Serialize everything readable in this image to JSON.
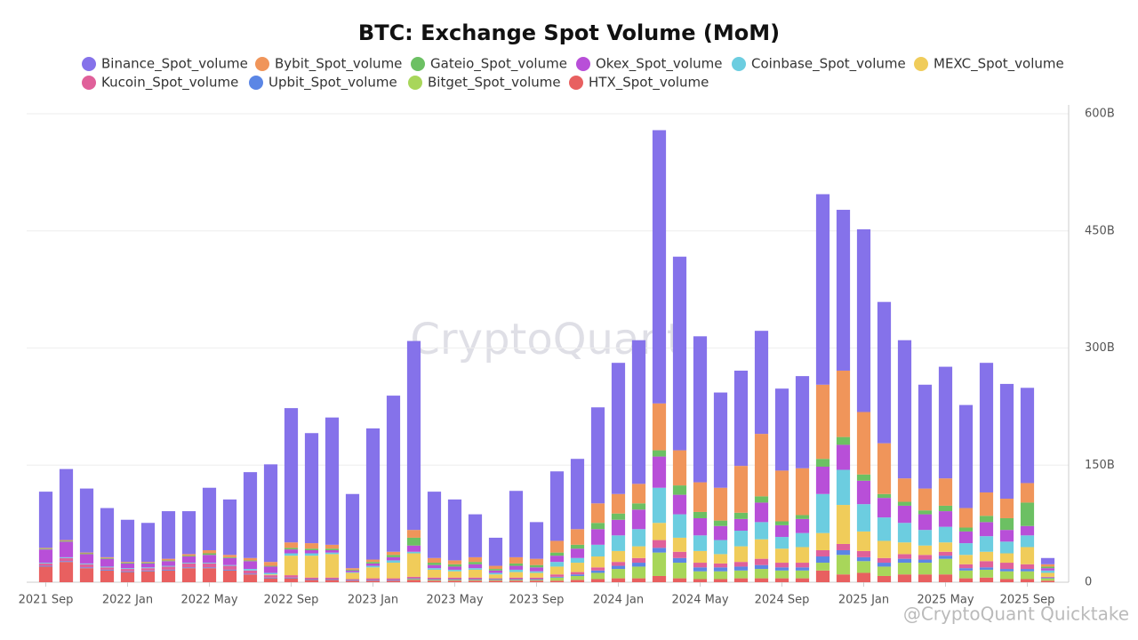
{
  "chart_data": {
    "type": "stacked_bar",
    "title": "BTC: Exchange Spot Volume (MoM)",
    "watermark": "CryptoQuant",
    "credit": "@CryptoQuant Quicktake",
    "categories": [
      "2021 Sep",
      null,
      null,
      null,
      "2022 Jan",
      null,
      null,
      null,
      "2022 May",
      null,
      null,
      null,
      "2022 Sep",
      null,
      null,
      null,
      "2023 Jan",
      null,
      null,
      null,
      "2023 May",
      null,
      null,
      null,
      "2023 Sep",
      null,
      null,
      null,
      "2024 Jan",
      null,
      null,
      null,
      "2024 May",
      null,
      null,
      null,
      "2024 Sep",
      null,
      null,
      null,
      "2025 Jan",
      null,
      null,
      null,
      "2025 May",
      null,
      null,
      null,
      "2025 Sep",
      null
    ],
    "series": [
      {
        "name": "Binance_Spot_volume",
        "color": "#8572ea",
        "values": [
          72,
          91,
          82,
          63,
          54,
          50,
          61,
          55,
          80,
          71,
          110,
          125,
          172,
          141,
          163,
          95,
          168,
          200,
          242,
          85,
          78,
          55,
          36,
          85,
          47,
          89,
          90,
          123,
          168,
          184,
          350,
          248,
          187,
          122,
          122,
          132,
          105,
          118,
          244,
          206,
          234,
          181,
          177,
          133,
          143,
          132,
          166,
          147,
          122,
          8
        ]
      },
      {
        "name": "Bybit_Spot_volume",
        "color": "#f0955a",
        "values": [
          1,
          1,
          1,
          1,
          1,
          1,
          2,
          2,
          4,
          3,
          3,
          5,
          7,
          7,
          5,
          2,
          3,
          4,
          10,
          6,
          5,
          6,
          4,
          8,
          8,
          15,
          20,
          25,
          25,
          25,
          60,
          45,
          38,
          42,
          60,
          80,
          65,
          60,
          95,
          85,
          80,
          65,
          30,
          28,
          35,
          25,
          30,
          25,
          25,
          3
        ]
      },
      {
        "name": "Gateio_Spot_volume",
        "color": "#6cc063",
        "values": [
          1,
          1,
          1,
          1,
          1,
          1,
          1,
          1,
          2,
          1,
          1,
          1,
          2,
          2,
          2,
          1,
          2,
          3,
          10,
          3,
          3,
          3,
          2,
          3,
          3,
          4,
          5,
          8,
          8,
          8,
          8,
          12,
          8,
          7,
          8,
          8,
          5,
          5,
          10,
          10,
          8,
          5,
          5,
          5,
          7,
          5,
          8,
          15,
          30,
          2
        ]
      },
      {
        "name": "Okex_Spot_volume",
        "color": "#b84fd8",
        "values": [
          17,
          20,
          12,
          10,
          6,
          5,
          6,
          8,
          10,
          9,
          10,
          8,
          5,
          4,
          3,
          2,
          3,
          4,
          8,
          4,
          4,
          5,
          3,
          5,
          5,
          8,
          12,
          20,
          20,
          25,
          40,
          25,
          22,
          18,
          15,
          25,
          15,
          18,
          35,
          32,
          30,
          25,
          22,
          20,
          20,
          15,
          18,
          15,
          12,
          3
        ]
      },
      {
        "name": "Coinbase_Spot_volume",
        "color": "#6ccde0",
        "values": [
          1,
          1,
          1,
          1,
          1,
          1,
          1,
          1,
          1,
          1,
          2,
          2,
          3,
          3,
          2,
          1,
          2,
          3,
          2,
          2,
          2,
          2,
          2,
          3,
          2,
          6,
          6,
          15,
          20,
          22,
          45,
          30,
          20,
          18,
          20,
          22,
          15,
          18,
          50,
          45,
          35,
          30,
          25,
          20,
          20,
          15,
          20,
          15,
          15,
          3
        ]
      },
      {
        "name": "MEXC_Spot_volume",
        "color": "#f0cc5a",
        "values": [
          0,
          0,
          0,
          0,
          0,
          0,
          0,
          0,
          0,
          0,
          0,
          1,
          25,
          28,
          30,
          8,
          14,
          20,
          30,
          10,
          8,
          10,
          5,
          7,
          6,
          10,
          12,
          14,
          14,
          15,
          22,
          18,
          15,
          12,
          20,
          25,
          18,
          20,
          22,
          50,
          25,
          22,
          15,
          12,
          12,
          12,
          12,
          12,
          22,
          5
        ]
      },
      {
        "name": "Kucoin_Spot_volume",
        "color": "#e0609a",
        "values": [
          3,
          4,
          4,
          3,
          3,
          3,
          4,
          5,
          5,
          5,
          4,
          3,
          3,
          2,
          2,
          1,
          2,
          2,
          2,
          2,
          2,
          2,
          1,
          2,
          2,
          3,
          3,
          4,
          5,
          6,
          10,
          8,
          6,
          5,
          6,
          8,
          6,
          6,
          8,
          8,
          8,
          6,
          6,
          6,
          5,
          5,
          8,
          8,
          6,
          1
        ]
      },
      {
        "name": "Upbit_Spot_volume",
        "color": "#5b86e5",
        "values": [
          1,
          1,
          1,
          1,
          1,
          1,
          1,
          1,
          1,
          1,
          1,
          1,
          1,
          1,
          1,
          1,
          1,
          1,
          1,
          1,
          1,
          1,
          1,
          1,
          1,
          1,
          2,
          3,
          4,
          5,
          6,
          6,
          5,
          5,
          5,
          5,
          4,
          4,
          8,
          6,
          5,
          5,
          5,
          4,
          4,
          3,
          3,
          3,
          3,
          1
        ]
      },
      {
        "name": "Bitget_Spot_volume",
        "color": "#a8d65a",
        "values": [
          0,
          0,
          0,
          0,
          0,
          0,
          0,
          0,
          0,
          0,
          0,
          0,
          0,
          0,
          0,
          0,
          0,
          0,
          1,
          1,
          1,
          1,
          1,
          1,
          1,
          4,
          5,
          8,
          12,
          15,
          30,
          20,
          10,
          10,
          10,
          12,
          10,
          10,
          10,
          25,
          15,
          12,
          15,
          15,
          20,
          10,
          10,
          10,
          10,
          3
        ]
      },
      {
        "name": "HTX_Spot_volume",
        "color": "#e86060",
        "values": [
          20,
          26,
          18,
          15,
          13,
          14,
          15,
          18,
          18,
          15,
          10,
          5,
          5,
          3,
          3,
          2,
          2,
          2,
          3,
          2,
          2,
          2,
          2,
          2,
          2,
          2,
          3,
          4,
          5,
          5,
          8,
          5,
          4,
          4,
          5,
          5,
          5,
          5,
          15,
          10,
          12,
          8,
          10,
          10,
          10,
          5,
          6,
          4,
          4,
          2
        ]
      }
    ],
    "ylim": [
      0,
      600
    ],
    "yticks": [
      0,
      {
        "value": 150,
        "label": "150B"
      },
      {
        "value": 300,
        "label": "300B"
      },
      {
        "value": 450,
        "label": "450B"
      },
      {
        "value": 600,
        "label": "600B"
      }
    ],
    "grid": true,
    "y_axis_side": "right",
    "legend": "top"
  }
}
